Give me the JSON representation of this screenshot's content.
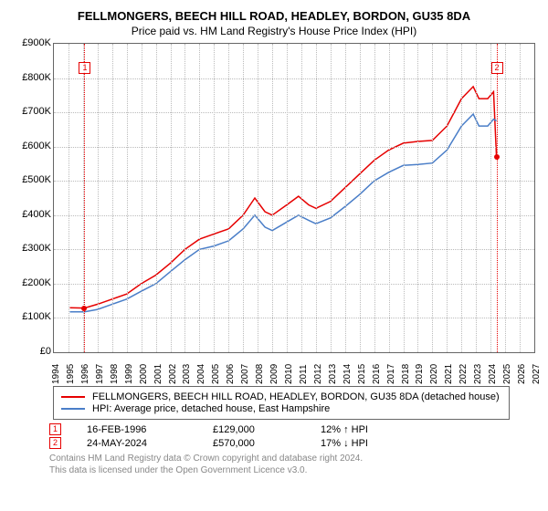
{
  "title": "FELLMONGERS, BEECH HILL ROAD, HEADLEY, BORDON, GU35 8DA",
  "subtitle": "Price paid vs. HM Land Registry's House Price Index (HPI)",
  "chart": {
    "type": "line",
    "background_color": "#ffffff",
    "grid_color": "#bbbbbb",
    "border_color": "#666666",
    "x_axis": {
      "min": 1994,
      "max": 2027,
      "ticks": [
        1994,
        1995,
        1996,
        1997,
        1998,
        1999,
        2000,
        2001,
        2002,
        2003,
        2004,
        2005,
        2006,
        2007,
        2008,
        2009,
        2010,
        2011,
        2012,
        2013,
        2014,
        2015,
        2016,
        2017,
        2018,
        2019,
        2020,
        2021,
        2022,
        2023,
        2024,
        2025,
        2026,
        2027
      ],
      "label_fontsize": 10,
      "label_rotation": -90
    },
    "y_axis": {
      "min": 0,
      "max": 900000,
      "ticks": [
        0,
        100000,
        200000,
        300000,
        400000,
        500000,
        600000,
        700000,
        800000,
        900000
      ],
      "tick_labels": [
        "£0",
        "£100K",
        "£200K",
        "£300K",
        "£400K",
        "£500K",
        "£600K",
        "£700K",
        "£800K",
        "£900K"
      ],
      "label_fontsize": 11
    },
    "series": [
      {
        "name": "FELLMONGERS, BEECH HILL ROAD, HEADLEY, BORDON, GU35 8DA (detached house)",
        "color": "#e60000",
        "line_width": 1.5,
        "points": [
          [
            1995.1,
            130000
          ],
          [
            1996.1,
            129000
          ],
          [
            1997,
            140000
          ],
          [
            1998,
            155000
          ],
          [
            1999,
            170000
          ],
          [
            2000,
            200000
          ],
          [
            2001,
            225000
          ],
          [
            2002,
            260000
          ],
          [
            2003,
            300000
          ],
          [
            2004,
            330000
          ],
          [
            2005,
            345000
          ],
          [
            2006,
            360000
          ],
          [
            2007,
            400000
          ],
          [
            2007.8,
            450000
          ],
          [
            2008.5,
            410000
          ],
          [
            2009,
            400000
          ],
          [
            2010,
            430000
          ],
          [
            2010.8,
            455000
          ],
          [
            2011.5,
            430000
          ],
          [
            2012,
            420000
          ],
          [
            2013,
            440000
          ],
          [
            2014,
            480000
          ],
          [
            2015,
            520000
          ],
          [
            2016,
            560000
          ],
          [
            2017,
            590000
          ],
          [
            2018,
            610000
          ],
          [
            2019,
            615000
          ],
          [
            2020,
            618000
          ],
          [
            2021,
            660000
          ],
          [
            2022,
            740000
          ],
          [
            2022.8,
            775000
          ],
          [
            2023.2,
            740000
          ],
          [
            2023.8,
            740000
          ],
          [
            2024.2,
            760000
          ],
          [
            2024.4,
            570000
          ]
        ]
      },
      {
        "name": "HPI: Average price, detached house, East Hampshire",
        "color": "#4a7ec8",
        "line_width": 1.5,
        "points": [
          [
            1995.1,
            118000
          ],
          [
            1996.1,
            118000
          ],
          [
            1997,
            125000
          ],
          [
            1998,
            140000
          ],
          [
            1999,
            155000
          ],
          [
            2000,
            178000
          ],
          [
            2001,
            200000
          ],
          [
            2002,
            235000
          ],
          [
            2003,
            270000
          ],
          [
            2004,
            300000
          ],
          [
            2005,
            310000
          ],
          [
            2006,
            325000
          ],
          [
            2007,
            360000
          ],
          [
            2007.8,
            400000
          ],
          [
            2008.5,
            365000
          ],
          [
            2009,
            355000
          ],
          [
            2010,
            380000
          ],
          [
            2010.8,
            400000
          ],
          [
            2011.5,
            385000
          ],
          [
            2012,
            375000
          ],
          [
            2013,
            392000
          ],
          [
            2014,
            425000
          ],
          [
            2015,
            460000
          ],
          [
            2016,
            500000
          ],
          [
            2017,
            525000
          ],
          [
            2018,
            545000
          ],
          [
            2019,
            548000
          ],
          [
            2020,
            552000
          ],
          [
            2021,
            590000
          ],
          [
            2022,
            660000
          ],
          [
            2022.8,
            695000
          ],
          [
            2023.2,
            660000
          ],
          [
            2023.8,
            660000
          ],
          [
            2024.2,
            680000
          ],
          [
            2024.4,
            675000
          ]
        ]
      }
    ],
    "markers": [
      {
        "label": "1",
        "x": 1996.1,
        "box_y": 830000,
        "point_y": 129000,
        "point_color": "#e60000"
      },
      {
        "label": "2",
        "x": 2024.4,
        "box_y": 830000,
        "point_y": 570000,
        "point_color": "#e60000"
      }
    ]
  },
  "legend": {
    "border_color": "#666666",
    "font_size": 11
  },
  "transactions": [
    {
      "marker": "1",
      "date": "16-FEB-1996",
      "price": "£129,000",
      "delta": "12% ↑ HPI"
    },
    {
      "marker": "2",
      "date": "24-MAY-2024",
      "price": "£570,000",
      "delta": "17% ↓ HPI"
    }
  ],
  "licence": {
    "line1": "Contains HM Land Registry data © Crown copyright and database right 2024.",
    "line2": "This data is licensed under the Open Government Licence v3.0."
  }
}
